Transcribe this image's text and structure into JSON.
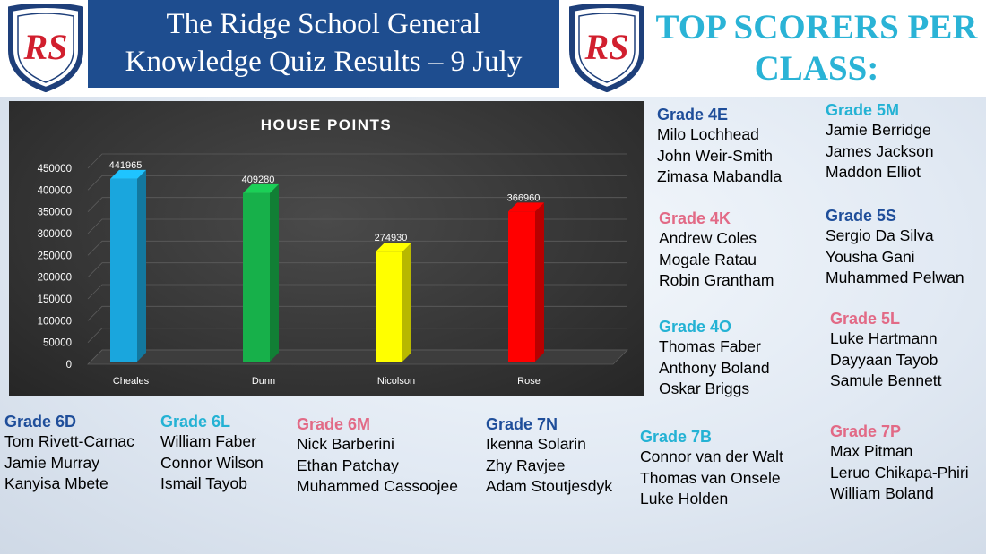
{
  "header": {
    "title_line1": "The Ridge School General",
    "title_line2": "Knowledge Quiz Results – 9 July",
    "scorers_line1": "TOP SCORERS PER",
    "scorers_line2": "CLASS:",
    "crest_initials": "RS"
  },
  "colors": {
    "title_bg": "#1e4d8f",
    "heading_cyan": "#2ab3d6",
    "navy": "#1f4e9a",
    "cyan": "#24b2d4",
    "pink": "#e26a86"
  },
  "chart_data": {
    "type": "bar",
    "title": "HOUSE POINTS",
    "categories": [
      "Cheales",
      "Dunn",
      "Nicolson",
      "Rose"
    ],
    "values": [
      441965,
      409280,
      274930,
      366960
    ],
    "bar_colors": [
      "#1aa6dd",
      "#17b04a",
      "#ffff00",
      "#ff0000"
    ],
    "ylim": [
      0,
      450000
    ],
    "yticks": [
      0,
      50000,
      100000,
      150000,
      200000,
      250000,
      300000,
      350000,
      400000,
      450000
    ],
    "grid": true,
    "legend": "none",
    "xlabel": "",
    "ylabel": ""
  },
  "groups": [
    {
      "id": "4e",
      "heading": "Grade 4E",
      "color": "navy",
      "names": [
        "Milo Lochhead",
        "John Weir-Smith",
        "Zimasa Mabandla"
      ]
    },
    {
      "id": "4k",
      "heading": "Grade 4K",
      "color": "pink",
      "names": [
        "Andrew Coles",
        "Mogale Ratau",
        "Robin Grantham"
      ]
    },
    {
      "id": "4o",
      "heading": "Grade 4O",
      "color": "cyan",
      "names": [
        "Thomas Faber",
        "Anthony Boland",
        "Oskar Briggs"
      ]
    },
    {
      "id": "5m",
      "heading": "Grade 5M",
      "color": "cyan",
      "names": [
        "Jamie Berridge",
        "James Jackson",
        "Maddon Elliot"
      ]
    },
    {
      "id": "5s",
      "heading": "Grade 5S",
      "color": "navy",
      "names": [
        "Sergio Da Silva",
        "Yousha Gani",
        "Muhammed Pelwan"
      ]
    },
    {
      "id": "5l",
      "heading": "Grade 5L",
      "color": "pink",
      "names": [
        "Luke Hartmann",
        "Dayyaan Tayob",
        "Samule Bennett"
      ]
    },
    {
      "id": "7p",
      "heading": "Grade 7P",
      "color": "pink",
      "names": [
        "Max Pitman",
        "Leruo Chikapa-Phiri",
        "William Boland"
      ]
    },
    {
      "id": "7b",
      "heading": "Grade 7B",
      "color": "cyan",
      "names": [
        "Connor van der Walt",
        "Thomas van Onsele",
        "Luke Holden"
      ]
    },
    {
      "id": "6d",
      "heading": "Grade 6D",
      "color": "navy",
      "names": [
        "Tom Rivett-Carnac",
        "Jamie Murray",
        "Kanyisa Mbete"
      ]
    },
    {
      "id": "6l",
      "heading": "Grade 6L",
      "color": "cyan",
      "names": [
        "William Faber",
        "Connor Wilson",
        "Ismail Tayob"
      ]
    },
    {
      "id": "6m",
      "heading": "Grade 6M",
      "color": "pink",
      "names": [
        "Nick Barberini",
        "Ethan Patchay",
        "Muhammed Cassoojee"
      ]
    },
    {
      "id": "7n",
      "heading": "Grade 7N",
      "color": "navy",
      "names": [
        "Ikenna Solarin",
        "Zhy Ravjee",
        "Adam Stoutjesdyk"
      ]
    }
  ]
}
